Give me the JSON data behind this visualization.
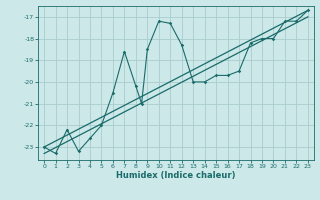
{
  "xlabel": "Humidex (Indice chaleur)",
  "bg_color": "#cce8e8",
  "grid_color": "#aacccc",
  "line_color": "#1a6b6b",
  "xlim": [
    -0.5,
    23.5
  ],
  "ylim": [
    -23.6,
    -16.5
  ],
  "xticks": [
    0,
    1,
    2,
    3,
    4,
    5,
    6,
    7,
    8,
    9,
    10,
    11,
    12,
    13,
    14,
    15,
    16,
    17,
    18,
    19,
    20,
    21,
    22,
    23
  ],
  "yticks": [
    -23,
    -22,
    -21,
    -20,
    -19,
    -18,
    -17
  ],
  "data_line": [
    [
      0,
      -23.0
    ],
    [
      1,
      -23.3
    ],
    [
      2,
      -22.2
    ],
    [
      3,
      -23.2
    ],
    [
      4,
      -22.6
    ],
    [
      5,
      -22.0
    ],
    [
      6,
      -20.5
    ],
    [
      7,
      -18.6
    ],
    [
      8,
      -20.2
    ],
    [
      8.5,
      -21.0
    ],
    [
      9,
      -18.5
    ],
    [
      10,
      -17.2
    ],
    [
      11,
      -17.3
    ],
    [
      12,
      -18.3
    ],
    [
      13,
      -20.0
    ],
    [
      14,
      -20.0
    ],
    [
      15,
      -19.7
    ],
    [
      16,
      -19.7
    ],
    [
      17,
      -19.5
    ],
    [
      18,
      -18.2
    ],
    [
      19,
      -18.0
    ],
    [
      20,
      -18.0
    ],
    [
      21,
      -17.2
    ],
    [
      22,
      -17.2
    ],
    [
      23,
      -16.7
    ]
  ],
  "diagonal_line1": [
    [
      0,
      -23.0
    ],
    [
      23,
      -16.7
    ]
  ],
  "diagonal_line2": [
    [
      0,
      -23.3
    ],
    [
      23,
      -17.0
    ]
  ]
}
